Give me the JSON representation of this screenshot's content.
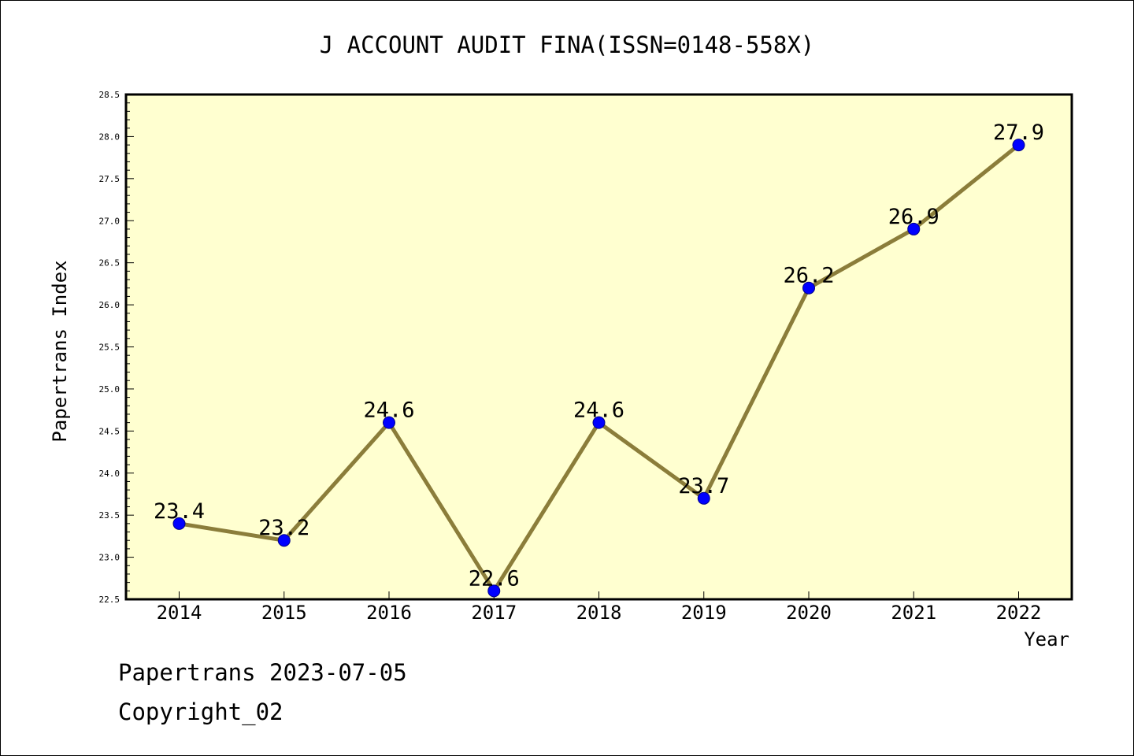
{
  "chart_data": {
    "type": "line",
    "title": "J ACCOUNT AUDIT FINA(ISSN=0148-558X)",
    "xlabel": "Year",
    "ylabel": "Papertrans Index",
    "categories": [
      "2014",
      "2015",
      "2016",
      "2017",
      "2018",
      "2019",
      "2020",
      "2021",
      "2022"
    ],
    "series": [
      {
        "values": [
          23.4,
          23.2,
          24.6,
          22.6,
          24.6,
          23.7,
          26.2,
          26.9,
          27.9
        ]
      }
    ],
    "data_labels": [
      "23.4",
      "23.2",
      "24.6",
      "22.6",
      "24.6",
      "23.7",
      "26.2",
      "26.9",
      "27.9"
    ],
    "ylim": [
      22.5,
      28.5
    ],
    "yticks": [
      "22.5",
      "23.0",
      "23.5",
      "24.0",
      "24.5",
      "25.0",
      "25.5",
      "26.0",
      "26.5",
      "27.0",
      "27.5",
      "28.0",
      "28.5"
    ],
    "grid": false,
    "plot_background": "#ffffd0",
    "line_color": "#8b7d3a",
    "marker_color": "#0000ff"
  },
  "footer": {
    "line1": "Papertrans 2023-07-05",
    "line2": "Copyright_02"
  }
}
